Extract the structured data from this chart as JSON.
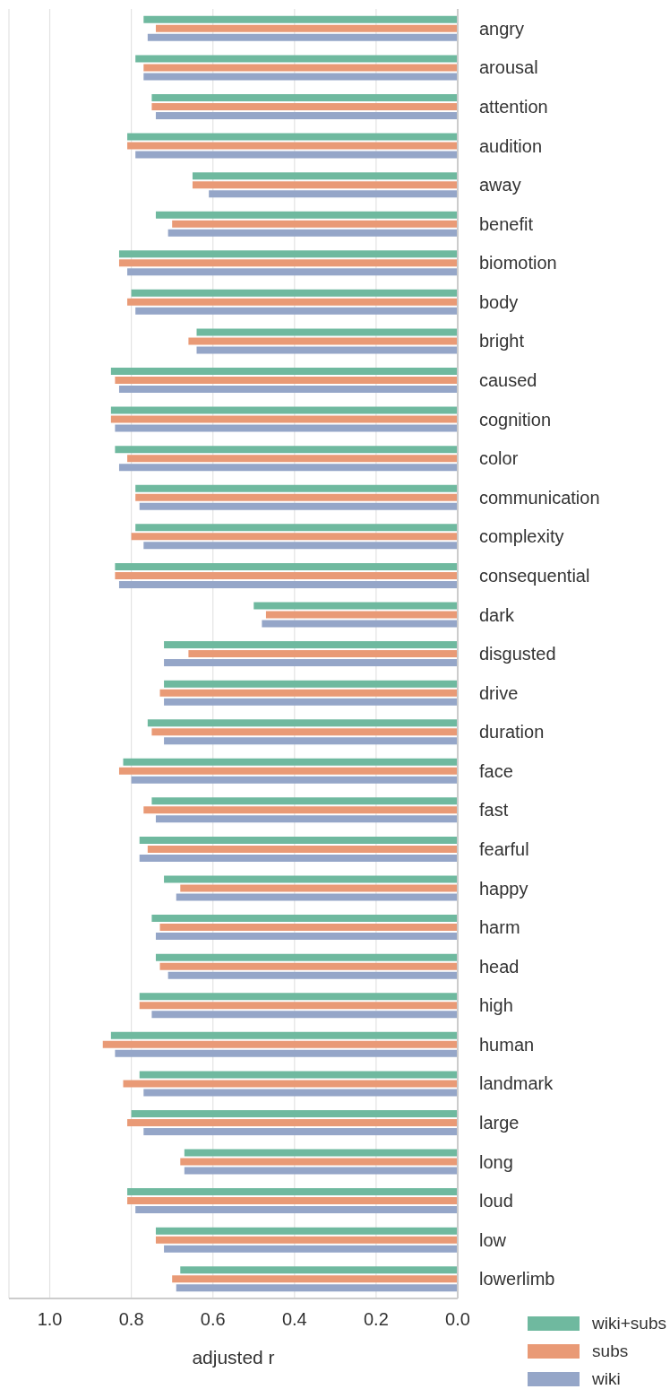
{
  "chart_data": {
    "type": "bar",
    "orientation": "horizontal",
    "xlabel": "adjusted r",
    "categories": [
      "angry",
      "arousal",
      "attention",
      "audition",
      "away",
      "benefit",
      "biomotion",
      "body",
      "bright",
      "caused",
      "cognition",
      "color",
      "communication",
      "complexity",
      "consequential",
      "dark",
      "disgusted",
      "drive",
      "duration",
      "face",
      "fast",
      "fearful",
      "happy",
      "harm",
      "head",
      "high",
      "human",
      "landmark",
      "large",
      "long",
      "loud",
      "low",
      "lowerlimb"
    ],
    "series": [
      {
        "name": "wiki+subs",
        "color": "#6fb99f",
        "values": [
          0.77,
          0.79,
          0.75,
          0.81,
          0.65,
          0.74,
          0.83,
          0.8,
          0.64,
          0.85,
          0.85,
          0.84,
          0.79,
          0.79,
          0.84,
          0.5,
          0.72,
          0.72,
          0.76,
          0.82,
          0.75,
          0.78,
          0.72,
          0.75,
          0.74,
          0.78,
          0.85,
          0.78,
          0.8,
          0.67,
          0.81,
          0.74,
          0.68
        ]
      },
      {
        "name": "subs",
        "color": "#e99a76",
        "values": [
          0.74,
          0.77,
          0.75,
          0.81,
          0.65,
          0.7,
          0.83,
          0.81,
          0.66,
          0.84,
          0.85,
          0.81,
          0.79,
          0.8,
          0.84,
          0.47,
          0.66,
          0.73,
          0.75,
          0.83,
          0.77,
          0.76,
          0.68,
          0.73,
          0.73,
          0.78,
          0.87,
          0.82,
          0.81,
          0.68,
          0.81,
          0.74,
          0.7
        ]
      },
      {
        "name": "wiki",
        "color": "#95a6c8",
        "values": [
          0.76,
          0.77,
          0.74,
          0.79,
          0.61,
          0.71,
          0.81,
          0.79,
          0.64,
          0.83,
          0.84,
          0.83,
          0.78,
          0.77,
          0.83,
          0.48,
          0.72,
          0.72,
          0.72,
          0.8,
          0.74,
          0.78,
          0.69,
          0.74,
          0.71,
          0.75,
          0.84,
          0.77,
          0.77,
          0.67,
          0.79,
          0.72,
          0.69
        ]
      }
    ],
    "xlim": [
      1.1,
      0.0
    ],
    "xticks": [
      {
        "value": 1,
        "label": "1.0"
      },
      {
        "value": 0.8,
        "label": "0.8"
      },
      {
        "value": 0.6,
        "label": "0.6"
      },
      {
        "value": 0.4,
        "label": "0.4"
      },
      {
        "value": 0.2,
        "label": "0.2"
      },
      {
        "value": 0,
        "label": "0.0"
      }
    ],
    "grid": "x",
    "legend": "bottom right"
  }
}
